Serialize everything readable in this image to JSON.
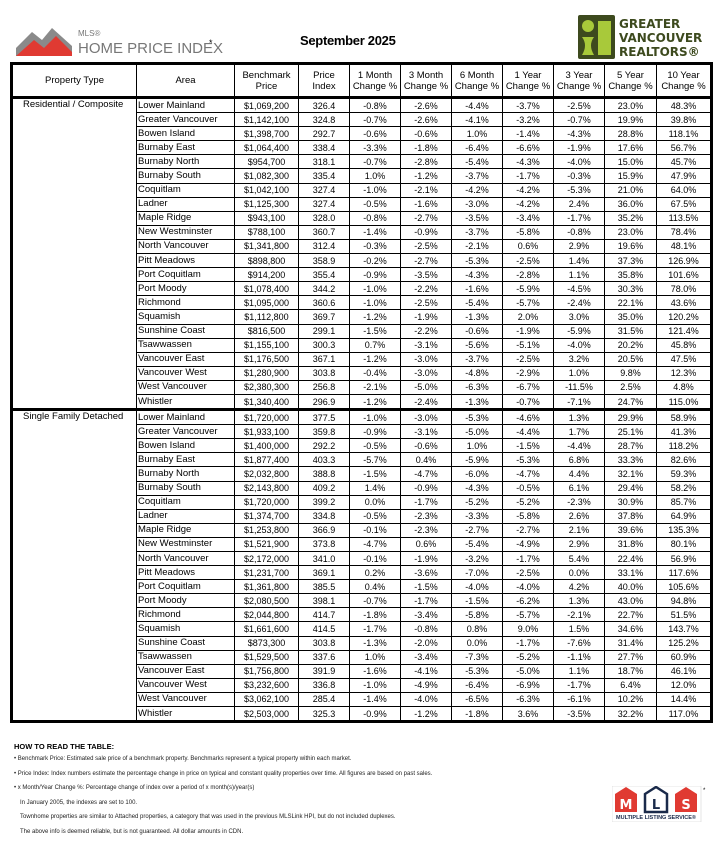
{
  "header": {
    "hpi_logo_text": "MLS® HOME PRICE INDEX *",
    "title": "September 2025",
    "brand_logo_text": "GREATER VANCOUVER REALTORS®",
    "brand_color": "#a8c93a"
  },
  "table": {
    "columns": [
      "Property Type",
      "Area",
      "Benchmark Price",
      "Price Index",
      "1 Month Change %",
      "3 Month Change %",
      "6 Month Change %",
      "1 Year Change %",
      "3 Year Change %",
      "5 Year Change %",
      "10 Year Change %"
    ],
    "groups": [
      {
        "property_type": "Residential / Composite",
        "rows": [
          [
            "Lower Mainland",
            "$1,069,200",
            "326.4",
            "-0.8%",
            "-2.6%",
            "-4.4%",
            "-3.7%",
            "-2.5%",
            "23.0%",
            "48.3%"
          ],
          [
            "Greater Vancouver",
            "$1,142,100",
            "324.8",
            "-0.7%",
            "-2.6%",
            "-4.1%",
            "-3.2%",
            "-0.7%",
            "19.9%",
            "39.8%"
          ],
          [
            "Bowen Island",
            "$1,398,700",
            "292.7",
            "-0.6%",
            "-0.6%",
            "1.0%",
            "-1.4%",
            "-4.3%",
            "28.8%",
            "118.1%"
          ],
          [
            "Burnaby East",
            "$1,064,400",
            "338.4",
            "-3.3%",
            "-1.8%",
            "-6.4%",
            "-6.6%",
            "-1.9%",
            "17.6%",
            "56.7%"
          ],
          [
            "Burnaby North",
            "$954,700",
            "318.1",
            "-0.7%",
            "-2.8%",
            "-5.4%",
            "-4.3%",
            "-4.0%",
            "15.0%",
            "45.7%"
          ],
          [
            "Burnaby South",
            "$1,082,300",
            "335.4",
            "1.0%",
            "-1.2%",
            "-3.7%",
            "-1.7%",
            "-0.3%",
            "15.9%",
            "47.9%"
          ],
          [
            "Coquitlam",
            "$1,042,100",
            "327.4",
            "-1.0%",
            "-2.1%",
            "-4.2%",
            "-4.2%",
            "-5.3%",
            "21.0%",
            "64.0%"
          ],
          [
            "Ladner",
            "$1,125,300",
            "327.4",
            "-0.5%",
            "-1.6%",
            "-3.0%",
            "-4.2%",
            "2.4%",
            "36.0%",
            "67.5%"
          ],
          [
            "Maple Ridge",
            "$943,100",
            "328.0",
            "-0.8%",
            "-2.7%",
            "-3.5%",
            "-3.4%",
            "-1.7%",
            "35.2%",
            "113.5%"
          ],
          [
            "New Westminster",
            "$788,100",
            "360.7",
            "-1.4%",
            "-0.9%",
            "-3.7%",
            "-5.8%",
            "-0.8%",
            "23.0%",
            "78.4%"
          ],
          [
            "North Vancouver",
            "$1,341,800",
            "312.4",
            "-0.3%",
            "-2.5%",
            "-2.1%",
            "0.6%",
            "2.9%",
            "19.6%",
            "48.1%"
          ],
          [
            "Pitt Meadows",
            "$898,800",
            "358.9",
            "-0.2%",
            "-2.7%",
            "-5.3%",
            "-2.5%",
            "1.4%",
            "37.3%",
            "126.9%"
          ],
          [
            "Port Coquitlam",
            "$914,200",
            "355.4",
            "-0.9%",
            "-3.5%",
            "-4.3%",
            "-2.8%",
            "1.1%",
            "35.8%",
            "101.6%"
          ],
          [
            "Port Moody",
            "$1,078,400",
            "344.2",
            "-1.0%",
            "-2.2%",
            "-1.6%",
            "-5.9%",
            "-4.5%",
            "30.3%",
            "78.0%"
          ],
          [
            "Richmond",
            "$1,095,000",
            "360.6",
            "-1.0%",
            "-2.5%",
            "-5.4%",
            "-5.7%",
            "-2.4%",
            "22.1%",
            "43.6%"
          ],
          [
            "Squamish",
            "$1,112,800",
            "369.7",
            "-1.2%",
            "-1.9%",
            "-1.3%",
            "2.0%",
            "3.0%",
            "35.0%",
            "120.2%"
          ],
          [
            "Sunshine Coast",
            "$816,500",
            "299.1",
            "-1.5%",
            "-2.2%",
            "-0.6%",
            "-1.9%",
            "-5.9%",
            "31.5%",
            "121.4%"
          ],
          [
            "Tsawwassen",
            "$1,155,100",
            "300.3",
            "0.7%",
            "-3.1%",
            "-5.6%",
            "-5.1%",
            "-4.0%",
            "20.2%",
            "45.8%"
          ],
          [
            "Vancouver East",
            "$1,176,500",
            "367.1",
            "-1.2%",
            "-3.0%",
            "-3.7%",
            "-2.5%",
            "3.2%",
            "20.5%",
            "47.5%"
          ],
          [
            "Vancouver West",
            "$1,280,900",
            "303.8",
            "-0.4%",
            "-3.0%",
            "-4.8%",
            "-2.9%",
            "1.0%",
            "9.8%",
            "12.3%"
          ],
          [
            "West Vancouver",
            "$2,380,300",
            "256.8",
            "-2.1%",
            "-5.0%",
            "-6.3%",
            "-6.7%",
            "-11.5%",
            "2.5%",
            "4.8%"
          ],
          [
            "Whistler",
            "$1,340,400",
            "296.9",
            "-1.2%",
            "-2.4%",
            "-1.3%",
            "-0.7%",
            "-7.1%",
            "24.7%",
            "115.0%"
          ]
        ]
      },
      {
        "property_type": "Single Family Detached",
        "rows": [
          [
            "Lower Mainland",
            "$1,720,000",
            "377.5",
            "-1.0%",
            "-3.0%",
            "-5.3%",
            "-4.6%",
            "1.3%",
            "29.9%",
            "58.9%"
          ],
          [
            "Greater Vancouver",
            "$1,933,100",
            "359.8",
            "-0.9%",
            "-3.1%",
            "-5.0%",
            "-4.4%",
            "1.7%",
            "25.1%",
            "41.3%"
          ],
          [
            "Bowen Island",
            "$1,400,000",
            "292.2",
            "-0.5%",
            "-0.6%",
            "1.0%",
            "-1.5%",
            "-4.4%",
            "28.7%",
            "118.2%"
          ],
          [
            "Burnaby East",
            "$1,877,400",
            "403.3",
            "-5.7%",
            "0.4%",
            "-5.9%",
            "-5.3%",
            "6.8%",
            "33.3%",
            "82.6%"
          ],
          [
            "Burnaby North",
            "$2,032,800",
            "388.8",
            "-1.5%",
            "-4.7%",
            "-6.0%",
            "-4.7%",
            "4.4%",
            "32.1%",
            "59.3%"
          ],
          [
            "Burnaby South",
            "$2,143,800",
            "409.2",
            "1.4%",
            "-0.9%",
            "-4.3%",
            "-0.5%",
            "6.1%",
            "29.4%",
            "58.2%"
          ],
          [
            "Coquitlam",
            "$1,720,000",
            "399.2",
            "0.0%",
            "-1.7%",
            "-5.2%",
            "-5.2%",
            "-2.3%",
            "30.9%",
            "85.7%"
          ],
          [
            "Ladner",
            "$1,374,700",
            "334.8",
            "-0.5%",
            "-2.3%",
            "-3.3%",
            "-5.8%",
            "2.6%",
            "37.8%",
            "64.9%"
          ],
          [
            "Maple Ridge",
            "$1,253,800",
            "366.9",
            "-0.1%",
            "-2.3%",
            "-2.7%",
            "-2.7%",
            "2.1%",
            "39.6%",
            "135.3%"
          ],
          [
            "New Westminster",
            "$1,521,900",
            "373.8",
            "-4.7%",
            "0.6%",
            "-5.4%",
            "-4.9%",
            "2.9%",
            "31.8%",
            "80.1%"
          ],
          [
            "North Vancouver",
            "$2,172,000",
            "341.0",
            "-0.1%",
            "-1.9%",
            "-3.2%",
            "-1.7%",
            "5.4%",
            "22.4%",
            "56.9%"
          ],
          [
            "Pitt Meadows",
            "$1,231,700",
            "369.1",
            "0.2%",
            "-3.6%",
            "-7.0%",
            "-2.5%",
            "0.0%",
            "33.1%",
            "117.6%"
          ],
          [
            "Port Coquitlam",
            "$1,361,800",
            "385.5",
            "0.4%",
            "-1.5%",
            "-4.0%",
            "-4.0%",
            "4.2%",
            "40.0%",
            "105.6%"
          ],
          [
            "Port Moody",
            "$2,080,500",
            "398.1",
            "-0.7%",
            "-1.7%",
            "-1.5%",
            "-6.2%",
            "1.3%",
            "43.0%",
            "94.8%"
          ],
          [
            "Richmond",
            "$2,044,800",
            "414.7",
            "-1.8%",
            "-3.4%",
            "-5.8%",
            "-5.7%",
            "-2.1%",
            "22.7%",
            "51.5%"
          ],
          [
            "Squamish",
            "$1,661,600",
            "414.5",
            "-1.7%",
            "-0.8%",
            "0.8%",
            "9.0%",
            "1.5%",
            "34.6%",
            "143.7%"
          ],
          [
            "Sunshine Coast",
            "$873,300",
            "303.8",
            "-1.3%",
            "-2.0%",
            "0.0%",
            "-1.7%",
            "-7.6%",
            "31.4%",
            "125.2%"
          ],
          [
            "Tsawwassen",
            "$1,529,500",
            "337.6",
            "1.0%",
            "-3.4%",
            "-7.3%",
            "-5.2%",
            "-1.1%",
            "27.7%",
            "60.9%"
          ],
          [
            "Vancouver East",
            "$1,756,800",
            "391.9",
            "-1.6%",
            "-4.1%",
            "-5.3%",
            "-5.0%",
            "1.1%",
            "18.7%",
            "46.1%"
          ],
          [
            "Vancouver West",
            "$3,232,600",
            "336.8",
            "-1.0%",
            "-4.9%",
            "-6.4%",
            "-6.9%",
            "-1.7%",
            "6.4%",
            "12.0%"
          ],
          [
            "West Vancouver",
            "$3,062,100",
            "285.4",
            "-1.4%",
            "-4.0%",
            "-6.5%",
            "-6.3%",
            "-6.1%",
            "10.2%",
            "14.4%"
          ],
          [
            "Whistler",
            "$2,503,000",
            "325.3",
            "-0.9%",
            "-1.2%",
            "-1.8%",
            "3.6%",
            "-3.5%",
            "32.2%",
            "117.0%"
          ]
        ]
      }
    ]
  },
  "notes": {
    "heading": "HOW TO READ THE TABLE:",
    "lines": [
      "• Benchmark Price:  Estimated sale price of a benchmark property. Benchmarks represent a typical property within each market.",
      "• Price Index:  Index numbers estimate the percentage change in price on typical and constant  quality properties over time. All figures are based on past sales.",
      "• x Month/Year Change %:  Percentage change of index over a period of x month(s)/year(s)",
      "In January 2005, the indexes are set to 100.",
      "Townhome properties are similar to Attached properties, a category that was used in the previous MLSLink HPI, but do not included duplexes.",
      "The above info is deemed reliable, but is not guaranteed. All dollar amounts in CDN."
    ]
  },
  "footer_logo": {
    "text": "MLS MULTIPLE LISTING SERVICE®",
    "color": "#e03a32"
  }
}
